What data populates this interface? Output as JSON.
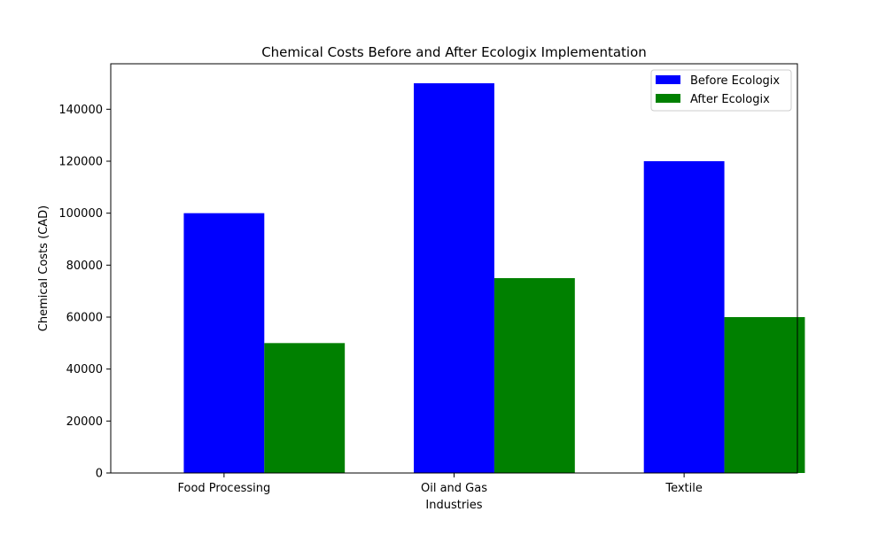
{
  "chart_data": {
    "type": "bar",
    "title": "Chemical Costs Before and After Ecologix Implementation",
    "xlabel": "Industries",
    "ylabel": "Chemical Costs (CAD)",
    "categories": [
      "Food Processing",
      "Oil and Gas",
      "Textile"
    ],
    "series": [
      {
        "name": "Before Ecologix",
        "color": "#0000ff",
        "values": [
          100000,
          150000,
          120000
        ]
      },
      {
        "name": "After Ecologix",
        "color": "#008000",
        "values": [
          50000,
          75000,
          60000
        ]
      }
    ],
    "ylim": [
      0,
      157500
    ],
    "yticks": [
      0,
      20000,
      40000,
      60000,
      80000,
      100000,
      120000,
      140000
    ],
    "legend_position": "top-right",
    "grid": false
  }
}
